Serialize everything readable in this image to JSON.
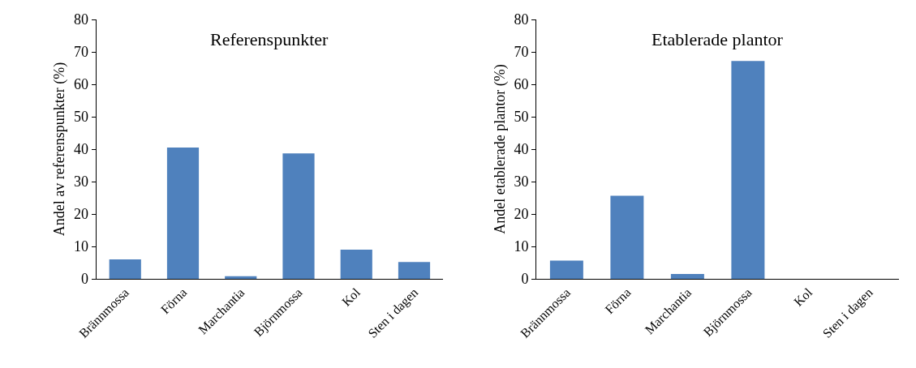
{
  "chart_data": [
    {
      "type": "bar",
      "title": "Referenspunkter",
      "ylabel": "Andel av referenspunkter (%)",
      "categories": [
        "Brännmossa",
        "Förna",
        "Marchantia",
        "Björnmossa",
        "Kol",
        "Sten i dagen"
      ],
      "values": [
        6,
        40.5,
        0.8,
        38.7,
        9,
        5.2
      ],
      "color": "#4f81bd",
      "ylim": [
        0,
        80
      ],
      "yticks": [
        0,
        10,
        20,
        30,
        40,
        50,
        60,
        70,
        80
      ]
    },
    {
      "type": "bar",
      "title": "Etablerade plantor",
      "ylabel": "Andel etablerade plantor (%)",
      "categories": [
        "Brännmossa",
        "Förna",
        "Marchantia",
        "Björnmossa",
        "Kol",
        "Sten i dagen"
      ],
      "values": [
        5.6,
        25.6,
        1.5,
        67.2,
        0,
        0
      ],
      "color": "#4f81bd",
      "ylim": [
        0,
        80
      ],
      "yticks": [
        0,
        10,
        20,
        30,
        40,
        50,
        60,
        70,
        80
      ]
    }
  ]
}
